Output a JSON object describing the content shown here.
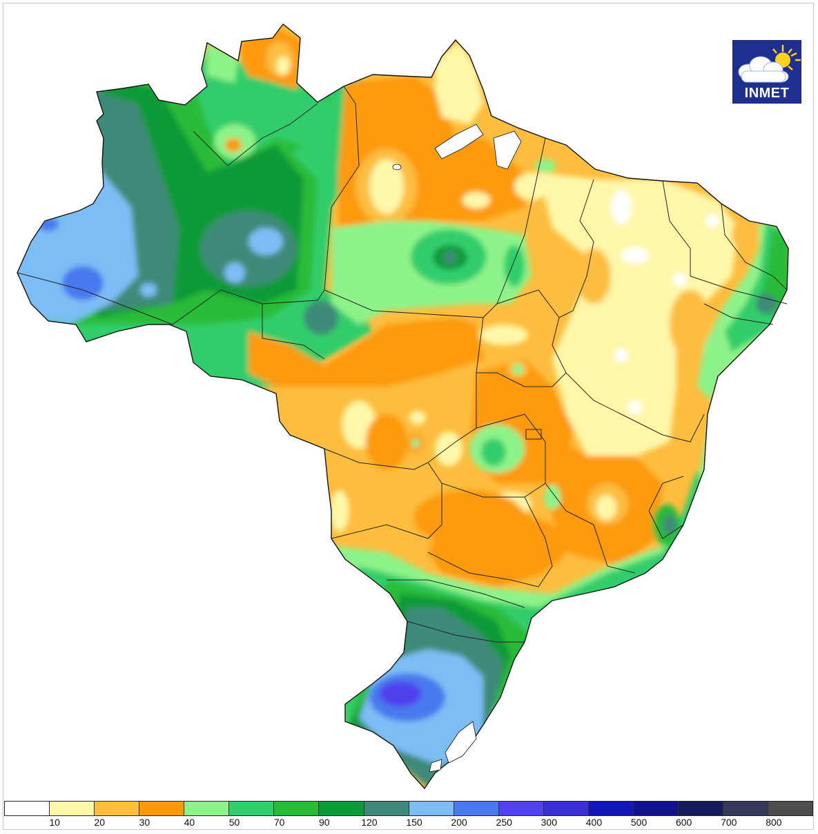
{
  "logo": {
    "text": "INMET",
    "icon": "cloud-sun-icon"
  },
  "legend": {
    "bins": [
      {
        "color": "#ffffff"
      },
      {
        "color": "#fff7a8",
        "label": "10"
      },
      {
        "color": "#fdbd3f",
        "label": "20"
      },
      {
        "color": "#fd9a09",
        "label": "30"
      },
      {
        "color": "#8ef38a",
        "label": "40"
      },
      {
        "color": "#33cd6b",
        "label": "50"
      },
      {
        "color": "#2bbb37",
        "label": "70"
      },
      {
        "color": "#0d9a38",
        "label": "90"
      },
      {
        "color": "#3d8a78",
        "label": "120"
      },
      {
        "color": "#7dbdf5",
        "label": "150"
      },
      {
        "color": "#4a79ee",
        "label": "200"
      },
      {
        "color": "#5040ee",
        "label": "250"
      },
      {
        "color": "#3a2fd0",
        "label": "300"
      },
      {
        "color": "#1216b5",
        "label": "400"
      },
      {
        "color": "#111489",
        "label": "500"
      },
      {
        "color": "#151b5a",
        "label": "600"
      },
      {
        "color": "#363a5a",
        "label": "700"
      },
      {
        "color": "#4d4d4d",
        "label": "800"
      }
    ]
  },
  "map": {
    "region": "Brazil"
  }
}
